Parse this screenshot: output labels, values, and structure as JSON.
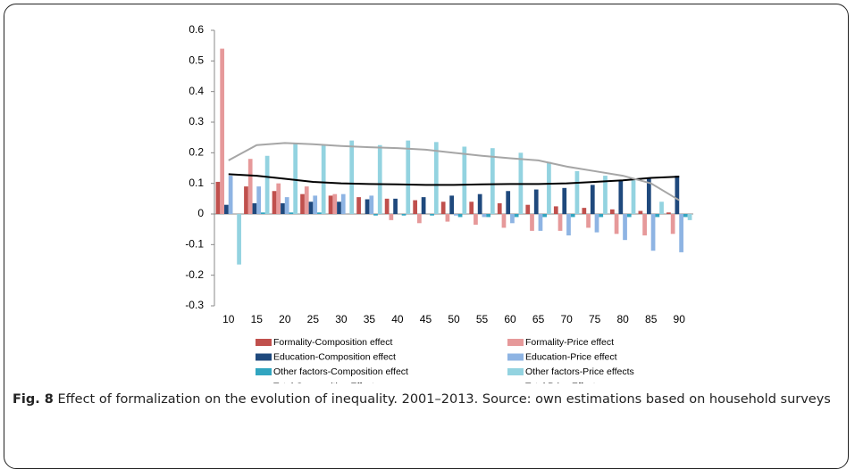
{
  "chart_data": {
    "type": "bar",
    "categories": [
      "10",
      "15",
      "20",
      "25",
      "30",
      "35",
      "40",
      "45",
      "50",
      "55",
      "60",
      "65",
      "70",
      "75",
      "80",
      "85",
      "90"
    ],
    "ylim": [
      -0.3,
      0.6
    ],
    "yticks": [
      -0.3,
      -0.2,
      -0.1,
      0,
      0.1,
      0.2,
      0.3,
      0.4,
      0.5,
      0.6
    ],
    "grid": false,
    "series": [
      {
        "name": "Formality-Composition effect",
        "color": "#c0504d",
        "values": [
          0.105,
          0.09,
          0.075,
          0.065,
          0.06,
          0.055,
          0.05,
          0.045,
          0.04,
          0.04,
          0.035,
          0.03,
          0.025,
          0.02,
          0.015,
          0.01,
          0.005
        ]
      },
      {
        "name": "Formality-Price effect",
        "color": "#e6999a",
        "values": [
          0.54,
          0.18,
          0.1,
          0.09,
          0.065,
          0.0,
          -0.02,
          -0.03,
          -0.025,
          -0.035,
          -0.045,
          -0.055,
          -0.055,
          -0.045,
          -0.065,
          -0.07,
          -0.065
        ]
      },
      {
        "name": "Education-Composition effect",
        "color": "#1f497d",
        "values": [
          0.03,
          0.035,
          0.035,
          0.04,
          0.04,
          0.048,
          0.05,
          0.055,
          0.06,
          0.065,
          0.075,
          0.08,
          0.085,
          0.095,
          0.11,
          0.115,
          0.125
        ]
      },
      {
        "name": "Education-Price effect",
        "color": "#8eb4e3",
        "values": [
          0.125,
          0.09,
          0.055,
          0.06,
          0.065,
          0.06,
          0.0,
          0.0,
          -0.005,
          -0.01,
          -0.03,
          -0.055,
          -0.07,
          -0.06,
          -0.085,
          -0.12,
          -0.125
        ]
      },
      {
        "name": "Other factors-Composition effect",
        "color": "#31a5c0",
        "values": [
          0.0,
          0.005,
          0.005,
          0.005,
          0.0,
          -0.005,
          -0.005,
          -0.005,
          -0.01,
          -0.01,
          -0.01,
          -0.01,
          -0.01,
          -0.01,
          -0.01,
          -0.01,
          -0.01
        ]
      },
      {
        "name": "Other factors-Price effects",
        "color": "#93d3e0",
        "values": [
          -0.165,
          0.19,
          0.23,
          0.225,
          0.24,
          0.225,
          0.24,
          0.235,
          0.22,
          0.215,
          0.2,
          0.17,
          0.14,
          0.125,
          0.11,
          0.04,
          -0.02
        ]
      },
      {
        "name": "Total Composition Effect",
        "type": "line",
        "color": "#000000",
        "values": [
          0.13,
          0.125,
          0.115,
          0.105,
          0.1,
          0.098,
          0.097,
          0.095,
          0.095,
          0.097,
          0.098,
          0.098,
          0.1,
          0.105,
          0.11,
          0.118,
          0.122
        ]
      },
      {
        "name": "Total Price Effect",
        "type": "line",
        "color": "#a6a6a6",
        "values": [
          0.175,
          0.225,
          0.232,
          0.228,
          0.222,
          0.218,
          0.215,
          0.21,
          0.2,
          0.19,
          0.182,
          0.175,
          0.155,
          0.14,
          0.125,
          0.1,
          0.045
        ]
      }
    ]
  },
  "caption": {
    "label": "Fig. 8",
    "text": "Effect of formalization on the evolution of inequality. 2001–2013. Source: own estimations based on household surveys"
  }
}
